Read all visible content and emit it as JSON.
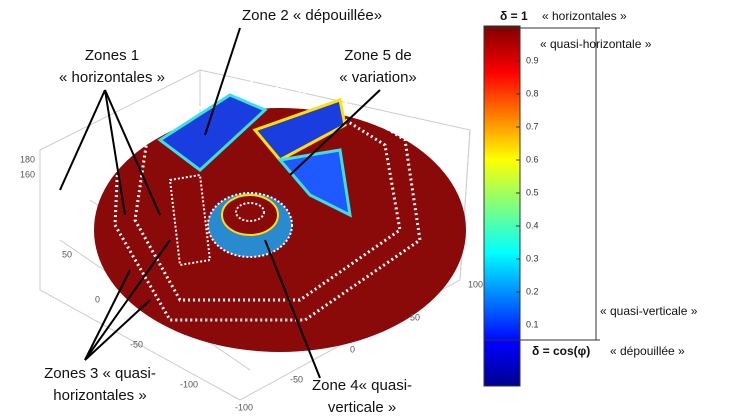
{
  "figure": {
    "zone_labels": [
      {
        "lines": [
          "Zone 2 « dépouillée»"
        ]
      },
      {
        "lines": [
          "Zones 1",
          "« horizontales »"
        ]
      },
      {
        "lines": [
          "Zone 5 de",
          "« variation»"
        ]
      },
      {
        "lines": [
          "Zones 3 « quasi-",
          "horizontales »"
        ]
      },
      {
        "lines": [
          "Zone  4« quasi-",
          "verticale »"
        ]
      }
    ],
    "axis_labels": {
      "z": [
        "180",
        "160"
      ],
      "left": [
        "50",
        "0",
        "-50",
        "-100"
      ],
      "right": [
        "100",
        "50",
        "0",
        "-50",
        "-100"
      ]
    },
    "colorbar": {
      "ticks": [
        0.9,
        0.8,
        0.7,
        0.6,
        0.5,
        0.4,
        0.3,
        0.2,
        0.1
      ]
    },
    "legend": {
      "top_formula": "δ = 1",
      "top_label": "« horizontales »",
      "quasi_horizontal": "« quasi-horizontale »",
      "quasi_vertical": "« quasi-verticale »",
      "bottom_formula": "δ = cos(φ)",
      "bottom_label": "« dépouillée »"
    }
  }
}
